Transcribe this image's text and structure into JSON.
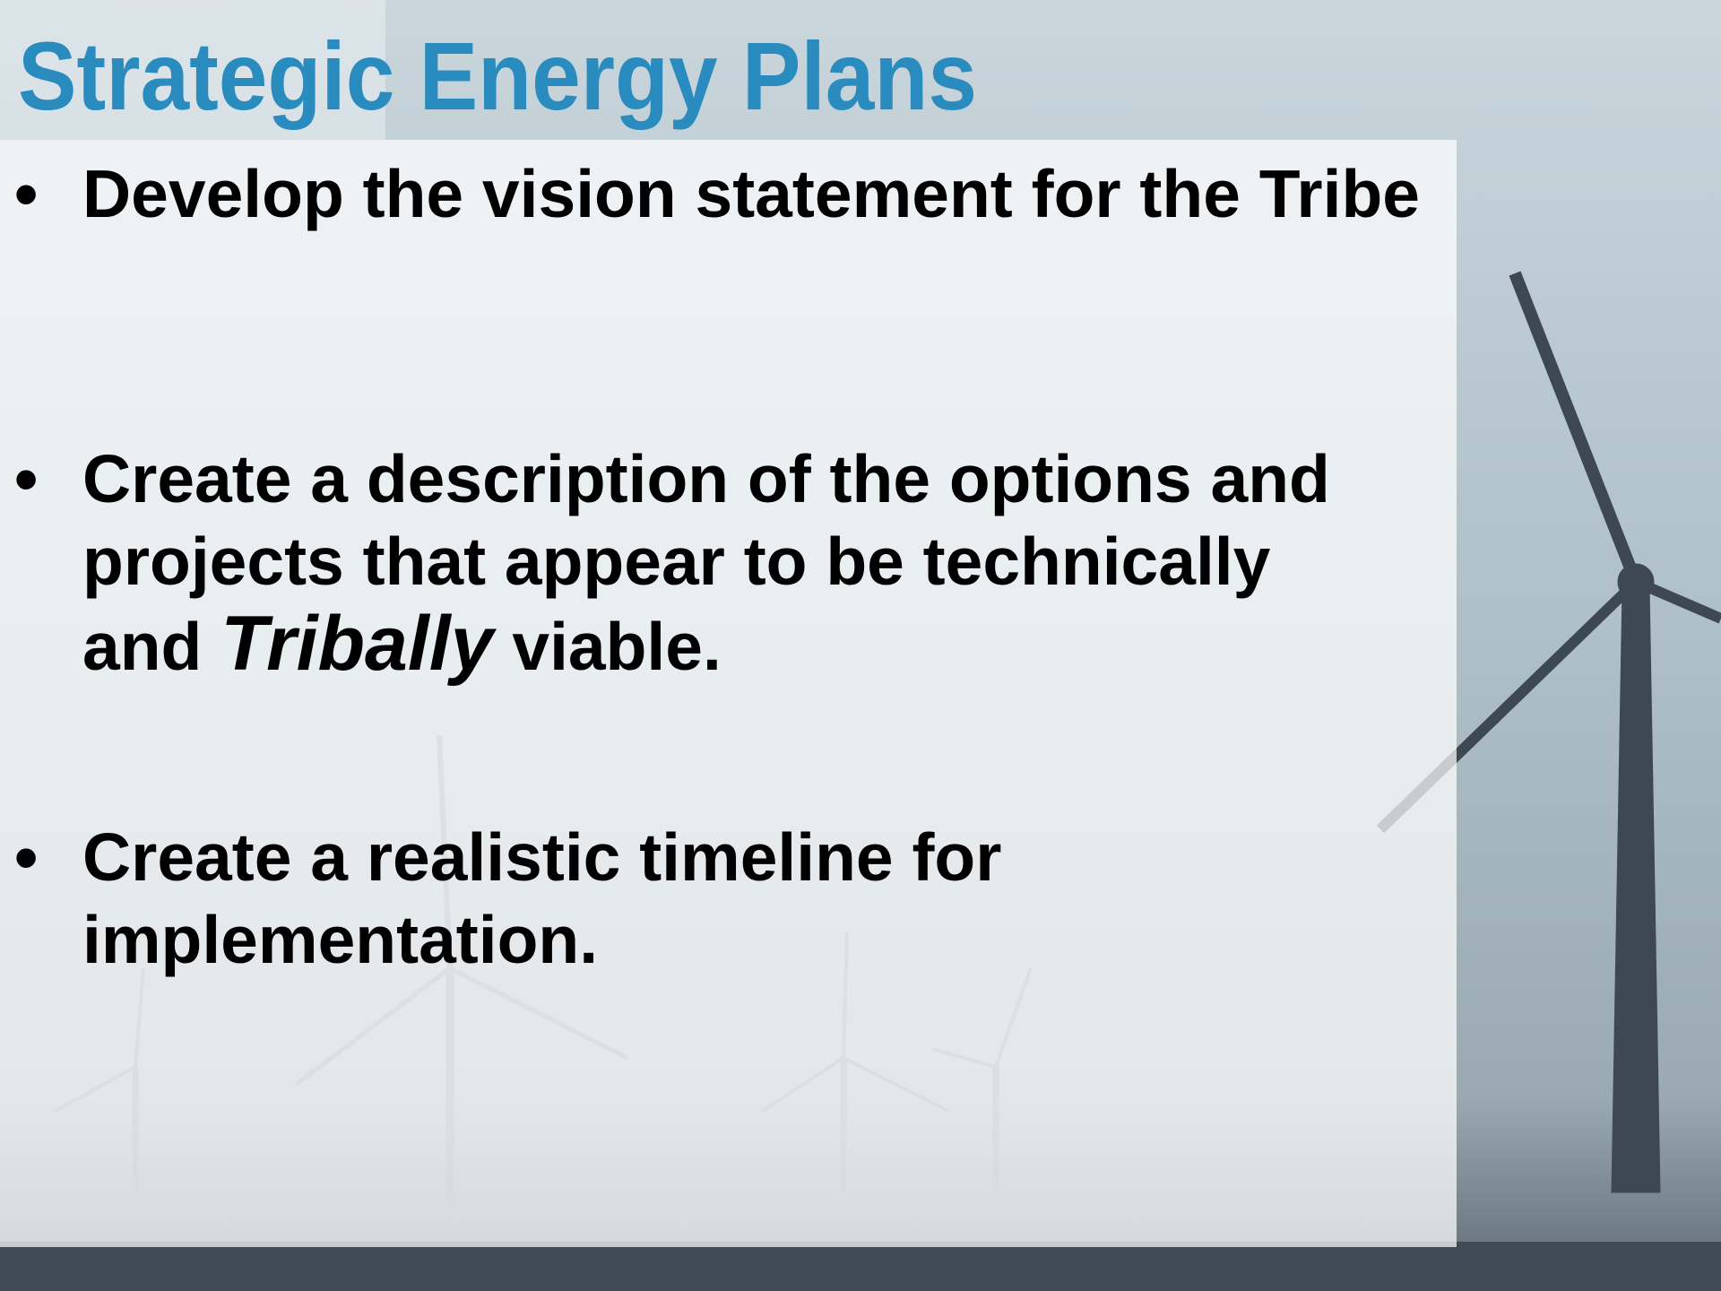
{
  "header": {
    "title": "Strategic Energy Plans"
  },
  "bullets": [
    {
      "parts": [
        "Develop the vision statement for the Tribe"
      ]
    },
    {
      "parts": [
        "Create a description of the options and projects that appear to be technically and ",
        "Tribally",
        " viable."
      ]
    },
    {
      "parts": [
        "Create a realistic timeline for implementation."
      ]
    }
  ]
}
